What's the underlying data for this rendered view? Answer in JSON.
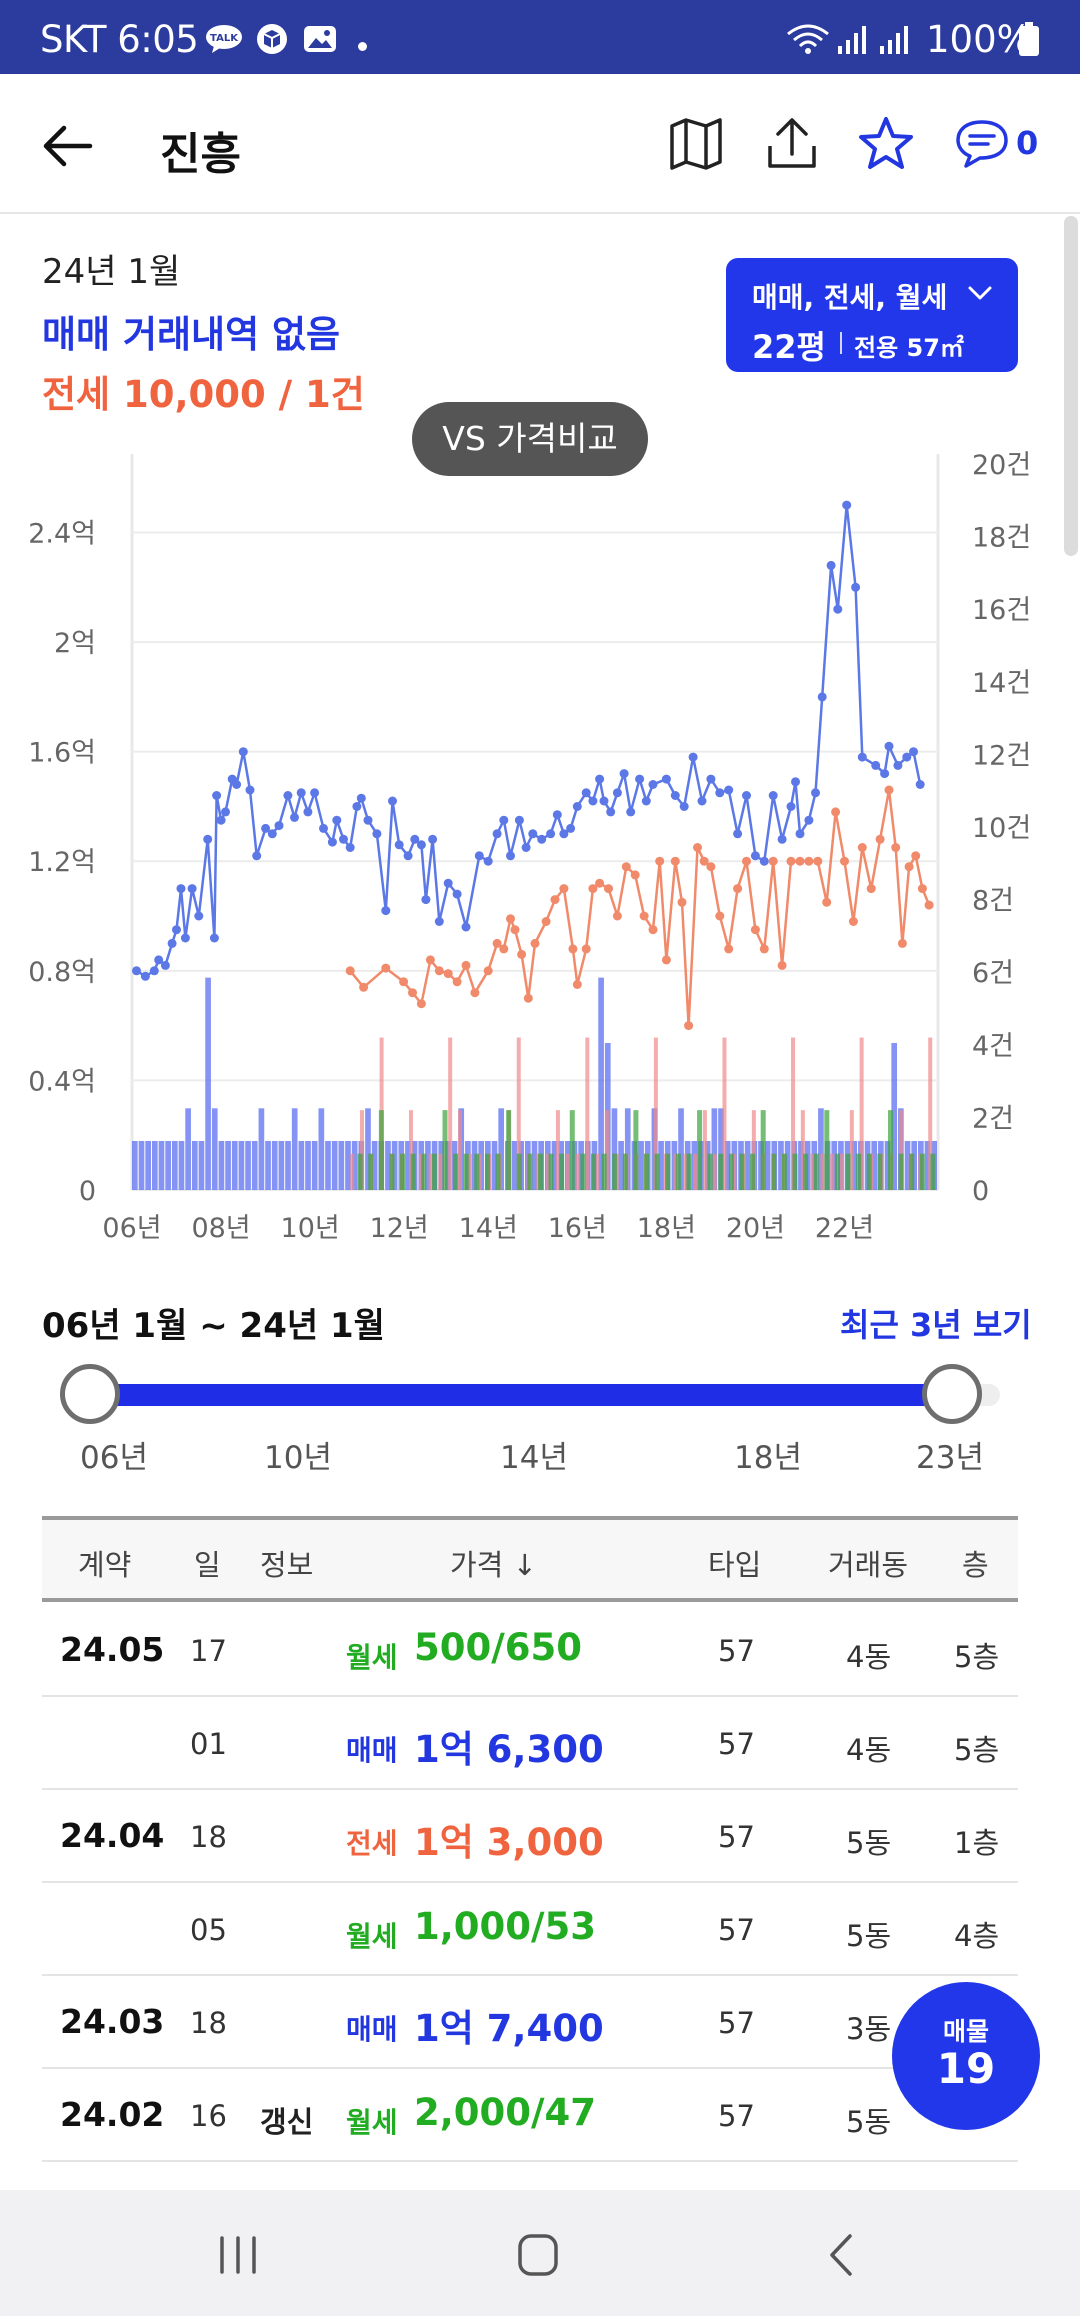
{
  "status_bar": {
    "carrier_time": "SKT 6:05",
    "battery": "100%",
    "icons": [
      "talk-icon",
      "box-icon",
      "gallery-icon",
      "wifi-icon",
      "signal-icon",
      "battery-icon"
    ]
  },
  "header": {
    "title": "진흥",
    "chat_count": "0",
    "icons": [
      "back-arrow-icon",
      "map-icon",
      "share-icon",
      "star-icon",
      "chat-icon"
    ]
  },
  "summary": {
    "date": "24년 1월",
    "sale_text": "매매 거래내역 없음",
    "rent_text": "전세 10,000 / 1건"
  },
  "filter": {
    "types": "매매, 전세, 월세",
    "size": "22평",
    "area": "전용 57㎡"
  },
  "compare_button": "VS 가격비교",
  "chart_data": {
    "type": "line",
    "x_ticks": [
      "06년",
      "08년",
      "10년",
      "12년",
      "14년",
      "16년",
      "18년",
      "20년",
      "22년"
    ],
    "y_left_ticks": [
      "0",
      "0.4억",
      "0.8억",
      "1.2억",
      "1.6억",
      "2억",
      "2.4억"
    ],
    "y_left_range": [
      0,
      2.65
    ],
    "y_right_ticks": [
      "0",
      "2건",
      "4건",
      "6건",
      "8건",
      "10건",
      "12건",
      "14건",
      "16건",
      "18건",
      "20건"
    ],
    "y_right_range": [
      0,
      20
    ],
    "x_range": [
      2006.0,
      2024.1
    ],
    "grid": true,
    "series": [
      {
        "color": "#5b78e6",
        "axis": "left",
        "values": [
          [
            2006.1,
            0.8
          ],
          [
            2006.3,
            0.78
          ],
          [
            2006.5,
            0.8
          ],
          [
            2006.6,
            0.84
          ],
          [
            2006.75,
            0.82
          ],
          [
            2006.9,
            0.9
          ],
          [
            2007.0,
            0.95
          ],
          [
            2007.1,
            1.1
          ],
          [
            2007.2,
            0.92
          ],
          [
            2007.35,
            1.1
          ],
          [
            2007.5,
            1.0
          ],
          [
            2007.7,
            1.28
          ],
          [
            2007.85,
            0.92
          ],
          [
            2007.9,
            1.44
          ],
          [
            2008.0,
            1.35
          ],
          [
            2008.1,
            1.38
          ],
          [
            2008.25,
            1.5
          ],
          [
            2008.35,
            1.48
          ],
          [
            2008.5,
            1.6
          ],
          [
            2008.65,
            1.46
          ],
          [
            2008.8,
            1.22
          ],
          [
            2009.0,
            1.32
          ],
          [
            2009.15,
            1.3
          ],
          [
            2009.3,
            1.33
          ],
          [
            2009.5,
            1.44
          ],
          [
            2009.65,
            1.36
          ],
          [
            2009.8,
            1.45
          ],
          [
            2009.95,
            1.38
          ],
          [
            2010.1,
            1.45
          ],
          [
            2010.3,
            1.32
          ],
          [
            2010.5,
            1.27
          ],
          [
            2010.6,
            1.35
          ],
          [
            2010.75,
            1.28
          ],
          [
            2010.9,
            1.25
          ],
          [
            2011.05,
            1.4
          ],
          [
            2011.15,
            1.43
          ],
          [
            2011.3,
            1.35
          ],
          [
            2011.5,
            1.3
          ],
          [
            2011.7,
            1.02
          ],
          [
            2011.85,
            1.42
          ],
          [
            2012.0,
            1.26
          ],
          [
            2012.2,
            1.22
          ],
          [
            2012.35,
            1.28
          ],
          [
            2012.5,
            1.26
          ],
          [
            2012.6,
            1.06
          ],
          [
            2012.75,
            1.28
          ],
          [
            2012.9,
            0.98
          ],
          [
            2013.1,
            1.12
          ],
          [
            2013.3,
            1.08
          ],
          [
            2013.5,
            0.96
          ],
          [
            2013.8,
            1.22
          ],
          [
            2014.0,
            1.2
          ],
          [
            2014.2,
            1.3
          ],
          [
            2014.35,
            1.35
          ],
          [
            2014.5,
            1.22
          ],
          [
            2014.7,
            1.35
          ],
          [
            2014.85,
            1.25
          ],
          [
            2015.0,
            1.3
          ],
          [
            2015.2,
            1.28
          ],
          [
            2015.4,
            1.3
          ],
          [
            2015.55,
            1.37
          ],
          [
            2015.7,
            1.3
          ],
          [
            2015.85,
            1.32
          ],
          [
            2016.0,
            1.4
          ],
          [
            2016.2,
            1.45
          ],
          [
            2016.35,
            1.42
          ],
          [
            2016.5,
            1.5
          ],
          [
            2016.6,
            1.42
          ],
          [
            2016.75,
            1.38
          ],
          [
            2016.9,
            1.45
          ],
          [
            2017.05,
            1.52
          ],
          [
            2017.2,
            1.38
          ],
          [
            2017.4,
            1.5
          ],
          [
            2017.55,
            1.42
          ],
          [
            2017.7,
            1.48
          ],
          [
            2018.0,
            1.5
          ],
          [
            2018.2,
            1.44
          ],
          [
            2018.4,
            1.4
          ],
          [
            2018.6,
            1.58
          ],
          [
            2018.8,
            1.42
          ],
          [
            2019.0,
            1.5
          ],
          [
            2019.2,
            1.45
          ],
          [
            2019.4,
            1.46
          ],
          [
            2019.6,
            1.3
          ],
          [
            2019.8,
            1.44
          ],
          [
            2020.0,
            1.22
          ],
          [
            2020.2,
            1.2
          ],
          [
            2020.4,
            1.44
          ],
          [
            2020.6,
            1.28
          ],
          [
            2020.8,
            1.4
          ],
          [
            2020.9,
            1.49
          ],
          [
            2021.0,
            1.3
          ],
          [
            2021.2,
            1.35
          ],
          [
            2021.35,
            1.45
          ],
          [
            2021.5,
            1.8
          ],
          [
            2021.7,
            2.28
          ],
          [
            2021.85,
            2.12
          ],
          [
            2022.05,
            2.5
          ],
          [
            2022.25,
            2.2
          ],
          [
            2022.4,
            1.58
          ],
          [
            2022.7,
            1.55
          ],
          [
            2022.9,
            1.52
          ],
          [
            2023.0,
            1.62
          ],
          [
            2023.2,
            1.55
          ],
          [
            2023.4,
            1.58
          ],
          [
            2023.55,
            1.6
          ],
          [
            2023.7,
            1.48
          ]
        ]
      },
      {
        "color": "#f08a6a",
        "axis": "left",
        "values": [
          [
            2010.9,
            0.8
          ],
          [
            2011.2,
            0.74
          ],
          [
            2011.7,
            0.81
          ],
          [
            2012.1,
            0.76
          ],
          [
            2012.3,
            0.72
          ],
          [
            2012.5,
            0.68
          ],
          [
            2012.7,
            0.84
          ],
          [
            2012.9,
            0.8
          ],
          [
            2013.1,
            0.79
          ],
          [
            2013.3,
            0.76
          ],
          [
            2013.5,
            0.82
          ],
          [
            2013.7,
            0.72
          ],
          [
            2014.0,
            0.8
          ],
          [
            2014.2,
            0.9
          ],
          [
            2014.35,
            0.88
          ],
          [
            2014.5,
            0.99
          ],
          [
            2014.6,
            0.95
          ],
          [
            2014.75,
            0.86
          ],
          [
            2014.9,
            0.7
          ],
          [
            2015.05,
            0.9
          ],
          [
            2015.3,
            0.98
          ],
          [
            2015.5,
            1.06
          ],
          [
            2015.7,
            1.1
          ],
          [
            2015.9,
            0.88
          ],
          [
            2016.0,
            0.75
          ],
          [
            2016.2,
            0.88
          ],
          [
            2016.35,
            1.1
          ],
          [
            2016.5,
            1.12
          ],
          [
            2016.7,
            1.1
          ],
          [
            2016.9,
            1.0
          ],
          [
            2017.1,
            1.18
          ],
          [
            2017.3,
            1.15
          ],
          [
            2017.5,
            1.0
          ],
          [
            2017.7,
            0.95
          ],
          [
            2017.85,
            1.2
          ],
          [
            2018.0,
            0.84
          ],
          [
            2018.2,
            1.2
          ],
          [
            2018.35,
            1.05
          ],
          [
            2018.5,
            0.6
          ],
          [
            2018.7,
            1.25
          ],
          [
            2018.85,
            1.2
          ],
          [
            2019.0,
            1.18
          ],
          [
            2019.2,
            1.0
          ],
          [
            2019.4,
            0.88
          ],
          [
            2019.6,
            1.1
          ],
          [
            2019.8,
            1.2
          ],
          [
            2020.0,
            0.95
          ],
          [
            2020.2,
            0.88
          ],
          [
            2020.4,
            1.2
          ],
          [
            2020.6,
            0.82
          ],
          [
            2020.8,
            1.2
          ],
          [
            2021.0,
            1.2
          ],
          [
            2021.2,
            1.2
          ],
          [
            2021.4,
            1.2
          ],
          [
            2021.6,
            1.05
          ],
          [
            2021.8,
            1.38
          ],
          [
            2022.0,
            1.2
          ],
          [
            2022.2,
            0.98
          ],
          [
            2022.4,
            1.25
          ],
          [
            2022.6,
            1.1
          ],
          [
            2022.8,
            1.28
          ],
          [
            2023.0,
            1.46
          ],
          [
            2023.15,
            1.25
          ],
          [
            2023.3,
            0.9
          ],
          [
            2023.45,
            1.18
          ],
          [
            2023.6,
            1.22
          ],
          [
            2023.75,
            1.1
          ],
          [
            2023.9,
            1.04
          ]
        ]
      }
    ]
  },
  "range": {
    "label": "06년 1월 ~ 24년 1월",
    "recent_link": "최근 3년 보기",
    "ticks": [
      "06년",
      "10년",
      "14년",
      "18년",
      "23년"
    ],
    "start_fraction": 0.0,
    "end_fraction": 1.0
  },
  "table": {
    "headers": {
      "contract": "계약",
      "day": "일",
      "info": "정보",
      "price": "가격 ↓",
      "type": "타입",
      "dong": "거래동",
      "floor": "층"
    },
    "rows": [
      {
        "date": "24.05",
        "day": "17",
        "info": "",
        "kind": "월세",
        "kind_class": "wolse",
        "price": "500/650",
        "type": "57",
        "dong": "4동",
        "floor": "5층"
      },
      {
        "date": "",
        "day": "01",
        "info": "",
        "kind": "매매",
        "kind_class": "sale",
        "price": "1억 6,300",
        "type": "57",
        "dong": "4동",
        "floor": "5층"
      },
      {
        "date": "24.04",
        "day": "18",
        "info": "",
        "kind": "전세",
        "kind_class": "jeonse",
        "price": "1억 3,000",
        "type": "57",
        "dong": "5동",
        "floor": "1층"
      },
      {
        "date": "",
        "day": "05",
        "info": "",
        "kind": "월세",
        "kind_class": "wolse",
        "price": "1,000/53",
        "type": "57",
        "dong": "5동",
        "floor": "4층"
      },
      {
        "date": "24.03",
        "day": "18",
        "info": "",
        "kind": "매매",
        "kind_class": "sale",
        "price": "1억 7,400",
        "type": "57",
        "dong": "3동",
        "floor": ""
      },
      {
        "date": "24.02",
        "day": "16",
        "info": "갱신",
        "kind": "월세",
        "kind_class": "wolse",
        "price": "2,000/47",
        "type": "57",
        "dong": "5동",
        "floor": ""
      }
    ]
  },
  "listing_fab": {
    "label": "매물",
    "count": "19"
  },
  "colors": {
    "accent": "#2236ea",
    "sale": "#2337e0",
    "jeonse": "#f0633f",
    "wolse": "#21ac22",
    "status_bar": "#2c3b9e"
  }
}
